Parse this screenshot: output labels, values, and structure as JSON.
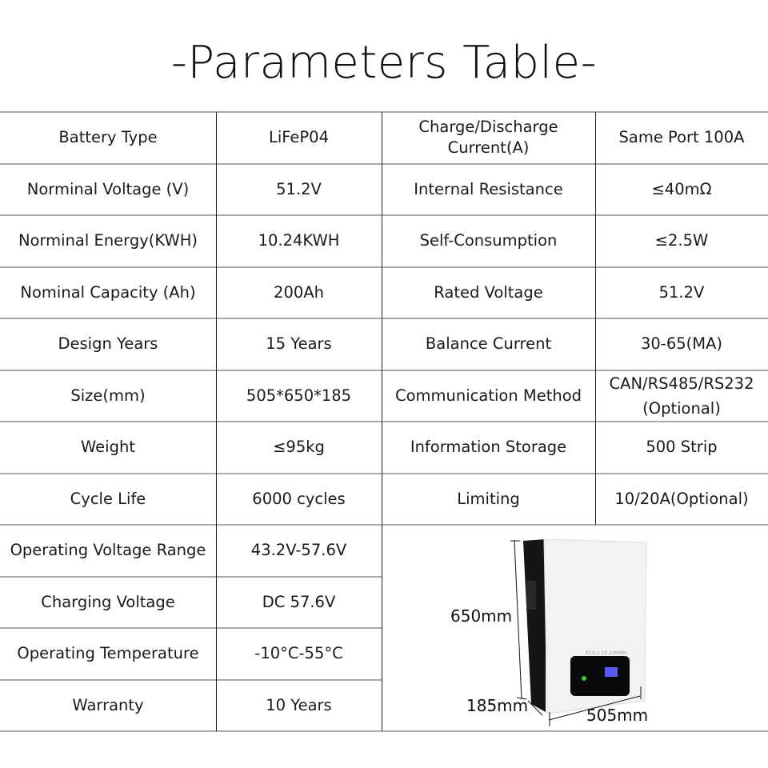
{
  "title": "-Parameters Table-",
  "rows": [
    [
      "Battery Type",
      "LiFeP04",
      "Charge/Discharge Current(A)",
      "Same Port 100A"
    ],
    [
      "Norminal Voltage (V)",
      "51.2V",
      "Internal Resistance",
      "≤40mΩ"
    ],
    [
      "Norminal Energy(KWH)",
      "10.24KWH",
      "Self-Consumption",
      "≤2.5W"
    ],
    [
      "Nominal Capacity (Ah)",
      "200Ah",
      "Rated Voltage",
      "51.2V"
    ],
    [
      "Design Years",
      "15 Years",
      "Balance Current",
      "30-65(MA)"
    ],
    [
      "Size(mm)",
      "505*650*185",
      "Communication Method",
      "CAN/RS485/RS232 (Optional)"
    ],
    [
      "Weight",
      "≤95kg",
      "Information Storage",
      "500 Strip"
    ],
    [
      "Cycle Life",
      "6000 cycles",
      "Limiting",
      "10/20A(Optional)"
    ],
    [
      "Operating Voltage Range",
      "43.2V-57.6V"
    ],
    [
      "Charging Voltage",
      "DC 57.6V"
    ],
    [
      "Operating Temperature",
      "-10°C-55°C"
    ],
    [
      "Warranty",
      "10 Years"
    ]
  ],
  "product_image": {
    "height_label": "650mm",
    "depth_label": "185mm",
    "width_label": "505mm",
    "panel_text": "ECX-2 10.24KWH"
  }
}
